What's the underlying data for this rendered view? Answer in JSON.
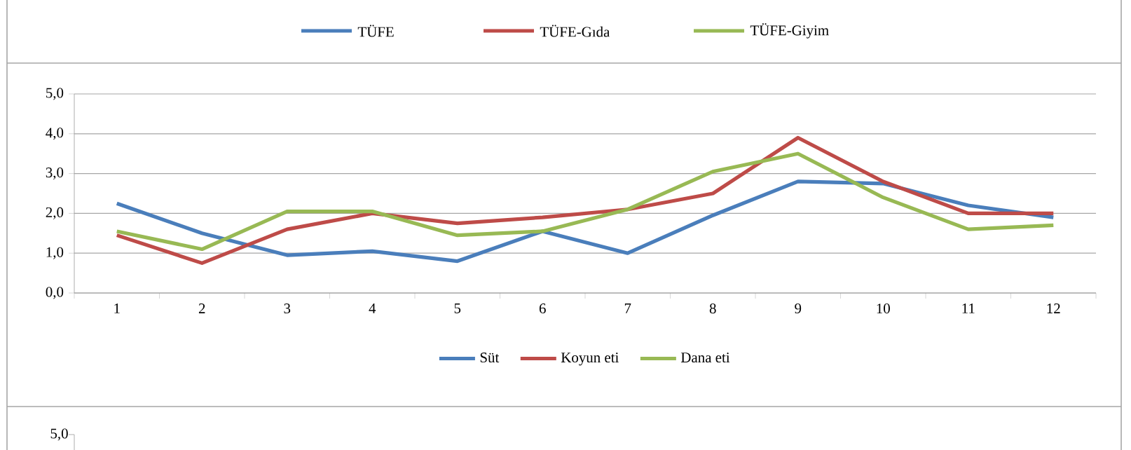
{
  "chart_data": {
    "type": "line",
    "categories": [
      "1",
      "2",
      "3",
      "4",
      "5",
      "6",
      "7",
      "8",
      "9",
      "10",
      "11",
      "12"
    ],
    "series": [
      {
        "name": "Süt",
        "color": "#4a7ebb",
        "values": [
          2.25,
          1.5,
          0.95,
          1.05,
          0.8,
          1.55,
          1.0,
          1.95,
          2.8,
          2.75,
          2.2,
          1.9
        ]
      },
      {
        "name": "Koyun eti",
        "color": "#be4b48",
        "values": [
          1.45,
          0.75,
          1.6,
          2.0,
          1.75,
          1.9,
          2.1,
          2.5,
          3.9,
          2.8,
          2.0,
          2.0
        ]
      },
      {
        "name": "Dana eti",
        "color": "#98b954",
        "values": [
          1.55,
          1.1,
          2.05,
          2.05,
          1.45,
          1.55,
          2.1,
          3.05,
          3.5,
          2.4,
          1.6,
          1.7
        ]
      }
    ],
    "ylim": [
      0,
      5
    ],
    "yticks": [
      {
        "value": 0,
        "label": "0,0"
      },
      {
        "value": 1,
        "label": "1,0"
      },
      {
        "value": 2,
        "label": "2,0"
      },
      {
        "value": 3,
        "label": "3,0"
      },
      {
        "value": 4,
        "label": "4,0"
      },
      {
        "value": 5,
        "label": "5,0"
      }
    ],
    "grid": "y",
    "legend": "bottom",
    "marker": "none",
    "line_style": "solid",
    "annotations": [
      "TÜFE",
      "TÜFE-Gıda",
      "TÜFE-Giyim",
      "5,0"
    ]
  }
}
